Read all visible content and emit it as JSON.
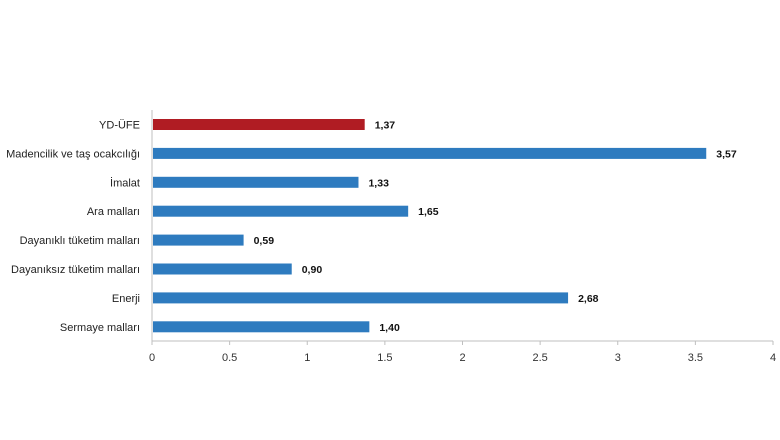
{
  "chart_data": {
    "type": "bar",
    "orientation": "horizontal",
    "categories": [
      "YD-ÜFE",
      "Madencilik ve taş ocakcılığı",
      "İmalat",
      "Ara malları",
      "Dayanıklı tüketim malları",
      "Dayanıksız tüketim malları",
      "Enerji",
      "Sermaye malları"
    ],
    "values": [
      1.37,
      3.57,
      1.33,
      1.65,
      0.59,
      0.9,
      2.68,
      1.4
    ],
    "value_labels": [
      "1,37",
      "3,57",
      "1,33",
      "1,65",
      "0,59",
      "0,90",
      "2,68",
      "1,40"
    ],
    "xlim": [
      0,
      4
    ],
    "xticks": [
      0,
      0.5,
      1,
      1.5,
      2,
      2.5,
      3,
      3.5,
      4
    ],
    "xtick_labels": [
      "0",
      "0.5",
      "1",
      "1.5",
      "2",
      "2.5",
      "3",
      "3.5",
      "4"
    ],
    "grid": false,
    "legend": "none",
    "colors": {
      "highlight": "#b01c23",
      "bar": "#2e7bbf",
      "axis": "#bfbfbf"
    },
    "highlight_index": 0
  }
}
